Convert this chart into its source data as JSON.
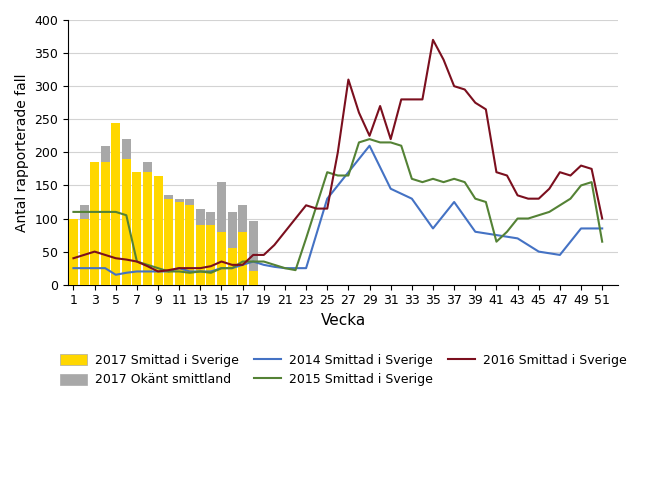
{
  "bar_weeks": [
    1,
    2,
    3,
    4,
    5,
    6,
    7,
    8,
    9,
    10,
    11,
    12,
    13,
    14,
    15,
    16,
    17,
    18
  ],
  "bar_smittad": [
    100,
    100,
    185,
    185,
    245,
    190,
    170,
    170,
    165,
    130,
    125,
    120,
    90,
    90,
    80,
    55,
    80,
    20
  ],
  "bar_total": [
    100,
    120,
    185,
    210,
    245,
    220,
    170,
    185,
    165,
    135,
    130,
    130,
    115,
    110,
    155,
    110,
    120,
    97
  ],
  "weeks_2014": [
    1,
    2,
    3,
    4,
    5,
    6,
    7,
    8,
    9,
    10,
    11,
    12,
    13,
    14,
    15,
    16,
    17,
    18,
    19,
    20,
    21,
    23,
    25,
    27,
    29,
    31,
    33,
    35,
    37,
    39,
    41,
    43,
    45,
    47,
    49,
    51
  ],
  "vals_2014": [
    25,
    25,
    25,
    25,
    15,
    18,
    20,
    20,
    20,
    20,
    25,
    20,
    20,
    20,
    25,
    25,
    30,
    35,
    30,
    27,
    25,
    25,
    130,
    170,
    210,
    145,
    130,
    85,
    125,
    80,
    75,
    70,
    50,
    45,
    85,
    85
  ],
  "weeks_2015": [
    1,
    2,
    3,
    4,
    5,
    6,
    7,
    8,
    9,
    10,
    11,
    12,
    13,
    14,
    15,
    16,
    17,
    18,
    19,
    20,
    21,
    22,
    23,
    24,
    25,
    26,
    27,
    28,
    29,
    30,
    31,
    32,
    33,
    34,
    35,
    36,
    37,
    38,
    39,
    40,
    41,
    42,
    43,
    44,
    45,
    46,
    47,
    48,
    49,
    50,
    51
  ],
  "vals_2015": [
    110,
    110,
    110,
    110,
    110,
    105,
    35,
    30,
    25,
    20,
    20,
    18,
    20,
    18,
    25,
    25,
    35,
    35,
    35,
    30,
    25,
    22,
    70,
    120,
    170,
    165,
    165,
    215,
    220,
    215,
    215,
    210,
    160,
    155,
    160,
    155,
    160,
    155,
    130,
    125,
    65,
    80,
    100,
    100,
    105,
    110,
    120,
    130,
    150,
    155,
    65
  ],
  "weeks_2016": [
    1,
    2,
    3,
    4,
    5,
    6,
    7,
    8,
    9,
    10,
    11,
    12,
    13,
    14,
    15,
    16,
    17,
    18,
    19,
    20,
    21,
    22,
    23,
    24,
    25,
    26,
    27,
    28,
    29,
    30,
    31,
    32,
    33,
    34,
    35,
    36,
    37,
    38,
    39,
    40,
    41,
    42,
    43,
    44,
    45,
    46,
    47,
    48,
    49,
    50,
    51
  ],
  "vals_2016": [
    40,
    45,
    50,
    45,
    40,
    38,
    35,
    28,
    20,
    22,
    25,
    25,
    25,
    28,
    35,
    30,
    30,
    45,
    45,
    60,
    80,
    100,
    120,
    115,
    115,
    200,
    310,
    260,
    225,
    270,
    220,
    280,
    280,
    280,
    370,
    340,
    300,
    295,
    275,
    265,
    170,
    165,
    135,
    130,
    130,
    145,
    170,
    165,
    180,
    175,
    100
  ],
  "color_smittad": "#FFD700",
  "color_okant": "#A8A8A8",
  "color_2014": "#4472C4",
  "color_2015": "#548235",
  "color_2016": "#7B0F1E",
  "ylabel": "Antal rapporterade fall",
  "xlabel": "Vecka",
  "ylim": [
    0,
    400
  ],
  "yticks": [
    0,
    50,
    100,
    150,
    200,
    250,
    300,
    350,
    400
  ],
  "xticks": [
    1,
    3,
    5,
    7,
    9,
    11,
    13,
    15,
    17,
    19,
    21,
    23,
    25,
    27,
    29,
    31,
    33,
    35,
    37,
    39,
    41,
    43,
    45,
    47,
    49,
    51
  ],
  "legend_2017s": "2017 Smittad i Sverige",
  "legend_2017o": "2017 Okänt smittland",
  "legend_2014": "2014 Smittad i Sverige",
  "legend_2015": "2015 Smittad i Sverige",
  "legend_2016": "2016 Smittad i Sverige"
}
